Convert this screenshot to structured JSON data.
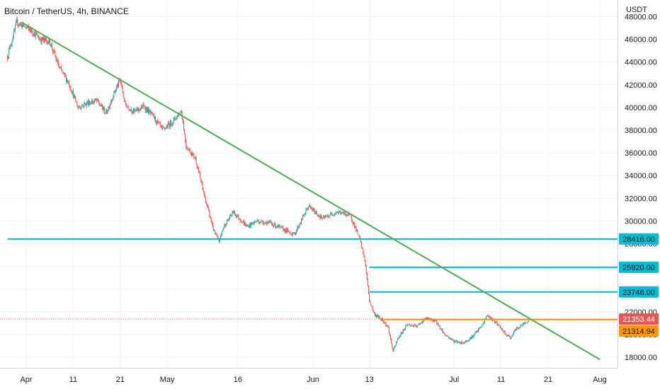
{
  "header": {
    "title": "Bitcoin / TetherUS, 4h, BINANCE"
  },
  "chart_data": {
    "type": "candlestick",
    "title": "Bitcoin / TetherUS, 4h, BINANCE",
    "ylabel": "USDT",
    "ylim": [
      17500,
      48500
    ],
    "y_ticks": [
      18000,
      20000,
      22000,
      24000,
      26000,
      28000,
      30000,
      32000,
      34000,
      36000,
      38000,
      40000,
      42000,
      44000,
      46000,
      48000
    ],
    "x_ticks": [
      "Apr",
      "11",
      "21",
      "May",
      "16",
      "Jun",
      "13",
      "Jul",
      "11",
      "21",
      "Aug"
    ],
    "x_tick_dates": [
      "2022-04-01",
      "2022-04-11",
      "2022-04-21",
      "2022-05-01",
      "2022-05-16",
      "2022-06-01",
      "2022-06-13",
      "2022-07-01",
      "2022-07-11",
      "2022-07-21",
      "2022-08-01"
    ],
    "price_path": [
      [
        "2022-03-28",
        44500
      ],
      [
        "2022-03-30",
        47500
      ],
      [
        "2022-04-02",
        46800
      ],
      [
        "2022-04-04",
        46000
      ],
      [
        "2022-04-06",
        45800
      ],
      [
        "2022-04-08",
        43500
      ],
      [
        "2022-04-10",
        42200
      ],
      [
        "2022-04-12",
        40000
      ],
      [
        "2022-04-14",
        40400
      ],
      [
        "2022-04-16",
        40600
      ],
      [
        "2022-04-18",
        39500
      ],
      [
        "2022-04-20",
        41600
      ],
      [
        "2022-04-21",
        42400
      ],
      [
        "2022-04-22",
        40300
      ],
      [
        "2022-04-24",
        39600
      ],
      [
        "2022-04-26",
        40100
      ],
      [
        "2022-04-28",
        39200
      ],
      [
        "2022-04-30",
        38000
      ],
      [
        "2022-05-02",
        38700
      ],
      [
        "2022-05-04",
        39700
      ],
      [
        "2022-05-05",
        36600
      ],
      [
        "2022-05-07",
        35500
      ],
      [
        "2022-05-09",
        32000
      ],
      [
        "2022-05-10",
        30500
      ],
      [
        "2022-05-11",
        29000
      ],
      [
        "2022-05-12",
        28200
      ],
      [
        "2022-05-13",
        29500
      ],
      [
        "2022-05-15",
        30800
      ],
      [
        "2022-05-18",
        29500
      ],
      [
        "2022-05-20",
        30000
      ],
      [
        "2022-05-23",
        29800
      ],
      [
        "2022-05-26",
        29200
      ],
      [
        "2022-05-28",
        28800
      ],
      [
        "2022-05-31",
        31300
      ],
      [
        "2022-06-03",
        30200
      ],
      [
        "2022-06-06",
        30800
      ],
      [
        "2022-06-08",
        30600
      ],
      [
        "2022-06-09",
        30400
      ],
      [
        "2022-06-10",
        29400
      ],
      [
        "2022-06-11",
        28300
      ],
      [
        "2022-06-12",
        26600
      ],
      [
        "2022-06-13",
        23000
      ],
      [
        "2022-06-14",
        21800
      ],
      [
        "2022-06-16",
        21200
      ],
      [
        "2022-06-17",
        20600
      ],
      [
        "2022-06-18",
        18500
      ],
      [
        "2022-06-19",
        19600
      ],
      [
        "2022-06-21",
        20900
      ],
      [
        "2022-06-23",
        20700
      ],
      [
        "2022-06-25",
        21400
      ],
      [
        "2022-06-27",
        21200
      ],
      [
        "2022-06-29",
        20000
      ],
      [
        "2022-07-01",
        19400
      ],
      [
        "2022-07-03",
        19250
      ],
      [
        "2022-07-05",
        19850
      ],
      [
        "2022-07-07",
        20800
      ],
      [
        "2022-07-08",
        21700
      ],
      [
        "2022-07-10",
        21000
      ],
      [
        "2022-07-12",
        20000
      ],
      [
        "2022-07-13",
        19700
      ],
      [
        "2022-07-14",
        20400
      ],
      [
        "2022-07-16",
        21000
      ],
      [
        "2022-07-17",
        21353.44
      ]
    ],
    "trendline": {
      "start": [
        "2022-03-31",
        47500
      ],
      "end": [
        "2022-08-01",
        17800
      ],
      "color": "#4caf50"
    },
    "horizontal_levels": [
      {
        "value": 28416.0,
        "label": "28416.00",
        "color": "#00bcd4",
        "from": "2022-03-28"
      },
      {
        "value": 25920.0,
        "label": "25920.00",
        "color": "#00bcd4",
        "from": "2022-06-13"
      },
      {
        "value": 23746.0,
        "label": "23746.00",
        "color": "#00bcd4",
        "from": "2022-06-13"
      },
      {
        "value": 21314.94,
        "label": "21314.94",
        "color": "#ff9800",
        "from": "2022-06-16"
      }
    ],
    "last_price": {
      "value": 21353.44,
      "label": "21353.44",
      "color": "#ef5350"
    },
    "colors": {
      "up": "#26a69a",
      "down": "#ef5350",
      "grid": "#f0f3fa",
      "axis_text": "#131722"
    }
  }
}
